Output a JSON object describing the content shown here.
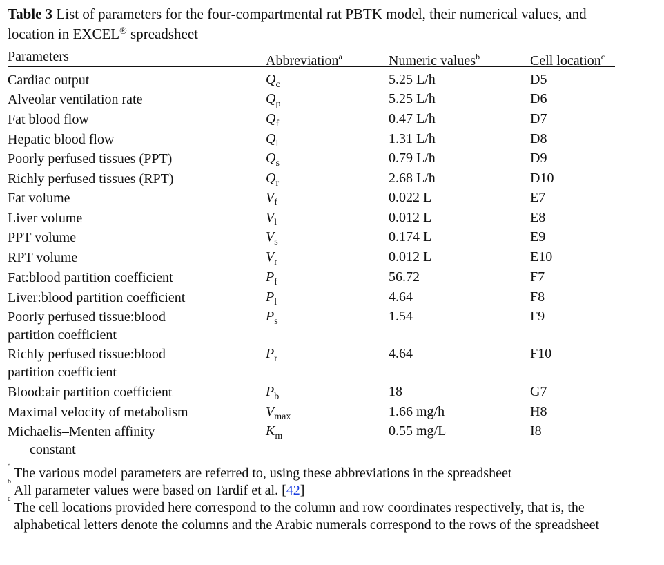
{
  "caption": {
    "label": "Table 3",
    "text_before": "List of parameters for the four-compartmental rat PBTK model, their numerical values, and location in EXCEL",
    "registered": "®",
    "text_after": " spreadsheet"
  },
  "headers": {
    "parameters": "Parameters",
    "abbreviation": "Abbreviation",
    "abbreviation_sup": "a",
    "numeric": "Numeric values",
    "numeric_sup": "b",
    "cell": "Cell location",
    "cell_sup": "c"
  },
  "rows": [
    {
      "param": "Cardiac output",
      "abbr": "Q",
      "abbr_sub": "c",
      "value": "5.25 L/h",
      "cell": "D5"
    },
    {
      "param": "Alveolar ventilation rate",
      "abbr": "Q",
      "abbr_sub": "p",
      "value": "5.25 L/h",
      "cell": "D6"
    },
    {
      "param": "Fat blood flow",
      "abbr": "Q",
      "abbr_sub": "f",
      "value": "0.47 L/h",
      "cell": "D7"
    },
    {
      "param": "Hepatic blood flow",
      "abbr": "Q",
      "abbr_sub": "l",
      "value": "1.31 L/h",
      "cell": "D8"
    },
    {
      "param": "Poorly perfused tissues (PPT)",
      "abbr": "Q",
      "abbr_sub": "s",
      "value": "0.79 L/h",
      "cell": "D9"
    },
    {
      "param": "Richly perfused tissues (RPT)",
      "abbr": "Q",
      "abbr_sub": "r",
      "value": "2.68 L/h",
      "cell": "D10"
    },
    {
      "param": "Fat volume",
      "abbr": "V",
      "abbr_sub": "f",
      "value": "0.022 L",
      "cell": "E7"
    },
    {
      "param": "Liver volume",
      "abbr": "V",
      "abbr_sub": "l",
      "value": "0.012 L",
      "cell": "E8"
    },
    {
      "param": "PPT volume",
      "abbr": "V",
      "abbr_sub": "s",
      "value": "0.174 L",
      "cell": "E9"
    },
    {
      "param": "RPT volume",
      "abbr": "V",
      "abbr_sub": "r",
      "value": "0.012 L",
      "cell": "E10"
    },
    {
      "param": "Fat:blood partition coefficient",
      "abbr": "P",
      "abbr_sub": "f",
      "value": "56.72",
      "cell": "F7"
    },
    {
      "param": "Liver:blood partition coefficient",
      "abbr": "P",
      "abbr_sub": "l",
      "value": "4.64",
      "cell": "F8"
    },
    {
      "param": "Poorly perfused tissue:blood partition coefficient",
      "abbr": "P",
      "abbr_sub": "s",
      "value": "1.54",
      "cell": "F9"
    },
    {
      "param": "Richly perfused tissue:blood partition coefficient",
      "abbr": "P",
      "abbr_sub": "r",
      "value": "4.64",
      "cell": "F10"
    },
    {
      "param": "Blood:air partition coefficient",
      "abbr": "P",
      "abbr_sub": "b",
      "value": "18",
      "cell": "G7"
    },
    {
      "param": "Maximal velocity of metabolism",
      "abbr": "V",
      "abbr_sub": "max",
      "value": "1.66 mg/h",
      "cell": "H8"
    },
    {
      "param": "Michaelis–Menten affinity constant",
      "abbr": "K",
      "abbr_sub": "m",
      "value": "0.55 mg/L",
      "cell": "I8"
    }
  ],
  "footnotes": [
    {
      "mark": "a",
      "text": "The various model parameters are referred to, using these abbreviations in the spreadsheet"
    },
    {
      "mark": "b",
      "text": "All parameter values were based on Tardif et al. ",
      "ref": "42"
    },
    {
      "mark": "c",
      "text": "The cell locations provided here correspond to the column and row coordinates respectively, that is, the alphabetical letters denote the columns and the Arabic numerals correspond to the rows of the spreadsheet"
    }
  ]
}
